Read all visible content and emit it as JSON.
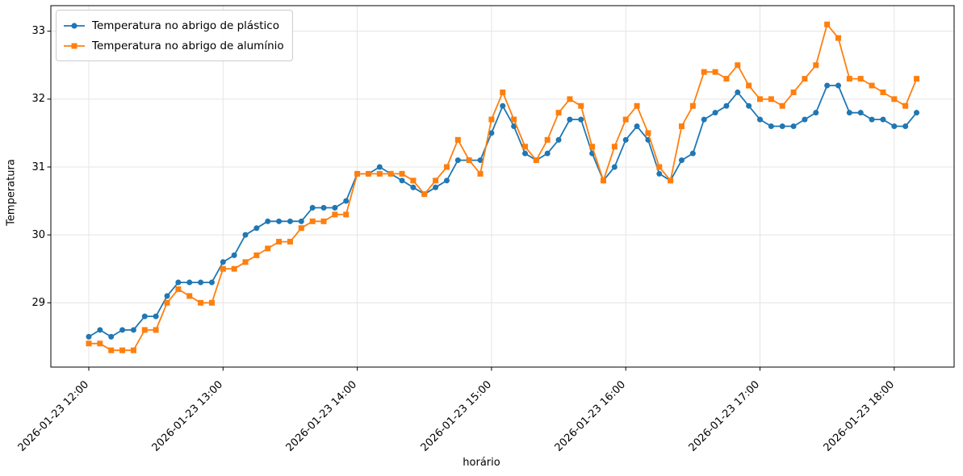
{
  "chart_data": {
    "type": "line",
    "title": "",
    "xlabel": "horário",
    "ylabel": "Temperatura",
    "x_start": "2026-01-23 12:00",
    "interval_minutes": 5,
    "x_tick_labels": [
      "2026-01-23 12:00",
      "2026-01-23 13:00",
      "2026-01-23 14:00",
      "2026-01-23 15:00",
      "2026-01-23 16:00",
      "2026-01-23 17:00",
      "2026-01-23 18:00"
    ],
    "y_ticks": [
      29,
      30,
      31,
      32,
      33
    ],
    "ylim": [
      28.05,
      33.38
    ],
    "grid": true,
    "legend_position": "upper left",
    "background_color": "#ffffff",
    "grid_color": "#e4e4e4",
    "series": [
      {
        "name": "Temperatura no abrigo de plástico",
        "color": "#1f77b4",
        "marker": "circle",
        "values": [
          28.5,
          28.6,
          28.5,
          28.6,
          28.6,
          28.8,
          28.8,
          29.1,
          29.3,
          29.3,
          29.3,
          29.3,
          29.6,
          29.7,
          30.0,
          30.1,
          30.2,
          30.2,
          30.2,
          30.2,
          30.4,
          30.4,
          30.4,
          30.5,
          30.9,
          30.9,
          31.0,
          30.9,
          30.8,
          30.7,
          30.6,
          30.7,
          30.8,
          31.1,
          31.1,
          31.1,
          31.5,
          31.9,
          31.6,
          31.2,
          31.1,
          31.2,
          31.4,
          31.7,
          31.7,
          31.2,
          30.8,
          31.0,
          31.4,
          31.6,
          31.4,
          30.9,
          30.8,
          31.1,
          31.2,
          31.7,
          31.8,
          31.9,
          32.1,
          31.9,
          31.7,
          31.6,
          31.6,
          31.6,
          31.7,
          31.8,
          32.2,
          32.2,
          31.8,
          31.8,
          31.7,
          31.7,
          31.6,
          31.6,
          31.8
        ]
      },
      {
        "name": "Temperatura no abrigo de alumínio",
        "color": "#ff7f0e",
        "marker": "square",
        "values": [
          28.4,
          28.4,
          28.3,
          28.3,
          28.3,
          28.6,
          28.6,
          29.0,
          29.2,
          29.1,
          29.0,
          29.0,
          29.5,
          29.5,
          29.6,
          29.7,
          29.8,
          29.9,
          29.9,
          30.1,
          30.2,
          30.2,
          30.3,
          30.3,
          30.9,
          30.9,
          30.9,
          30.9,
          30.9,
          30.8,
          30.6,
          30.8,
          31.0,
          31.4,
          31.1,
          30.9,
          31.7,
          32.1,
          31.7,
          31.3,
          31.1,
          31.4,
          31.8,
          32.0,
          31.9,
          31.3,
          30.8,
          31.3,
          31.7,
          31.9,
          31.5,
          31.0,
          30.8,
          31.6,
          31.9,
          32.4,
          32.4,
          32.3,
          32.5,
          32.2,
          32.0,
          32.0,
          31.9,
          32.1,
          32.3,
          32.5,
          33.1,
          32.9,
          32.3,
          32.3,
          32.2,
          32.1,
          32.0,
          31.9,
          32.3
        ]
      }
    ]
  }
}
